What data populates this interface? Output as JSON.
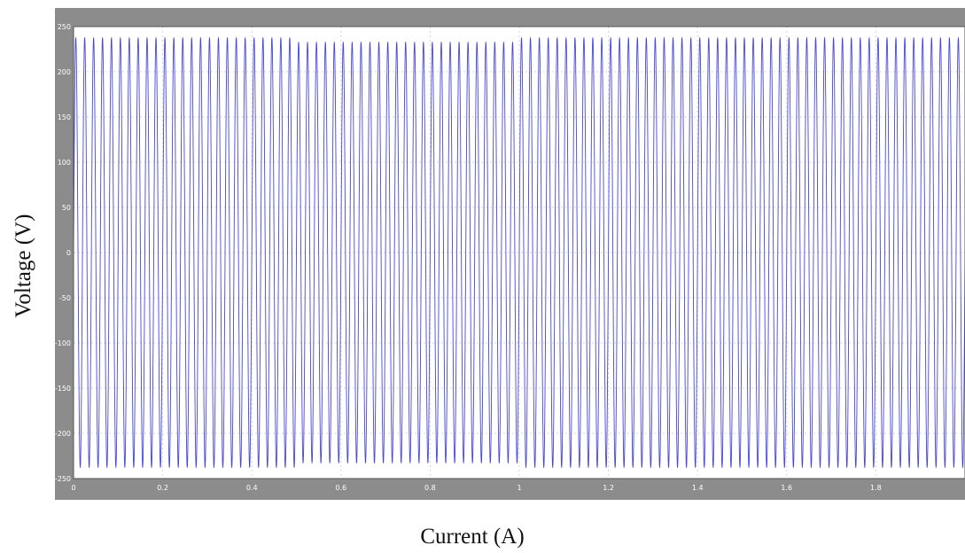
{
  "chart_data": {
    "type": "line",
    "title": "",
    "xlabel": "Current (A)",
    "ylabel": "Voltage (V)",
    "xlim": [
      0,
      2
    ],
    "ylim": [
      -250,
      250
    ],
    "x_ticks": [
      "0",
      "0.2",
      "0.4",
      "0.6",
      "0.8",
      "1",
      "1.2",
      "1.4",
      "1.6",
      "1.8"
    ],
    "y_ticks": [
      "250",
      "200",
      "150",
      "100",
      "50",
      "0",
      "-50",
      "-100",
      "-150",
      "-200",
      "-250"
    ],
    "grid": true,
    "series": [
      {
        "color": "#4747d6",
        "waveform": "sine",
        "frequency": 50,
        "x_range": [
          0,
          2
        ],
        "amplitude_segments": [
          {
            "x_start": 0,
            "x_end": 0.5,
            "amplitude": 238
          },
          {
            "x_start": 0.5,
            "x_end": 1,
            "amplitude": 233
          },
          {
            "x_start": 1,
            "x_end": 2,
            "amplitude": 238
          }
        ]
      }
    ]
  },
  "colors": {
    "frame": "#8c8c8c",
    "plot_background": "#ffffff",
    "line": "#4747d6",
    "grid": "#d4d4d4",
    "tick_text": "#ffffff"
  }
}
